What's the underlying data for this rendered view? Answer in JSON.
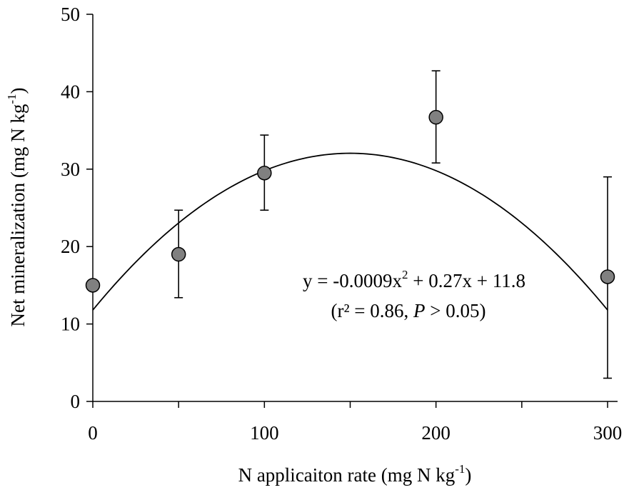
{
  "chart_data": {
    "type": "scatter",
    "xlabel": "N applicaiton  rate  (mg N kg",
    "xlabel_sup": "-1",
    "xlabel_end": ")",
    "ylabel": "Net mineralization  (mg N kg",
    "ylabel_sup": "-1",
    "ylabel_end": ")",
    "xlim": [
      0,
      310
    ],
    "ylim": [
      0,
      50
    ],
    "xticks_major": [
      0,
      100,
      200,
      300
    ],
    "xticks_minor": [
      50,
      150,
      250
    ],
    "yticks": [
      0,
      10,
      20,
      30,
      40,
      50
    ],
    "points": [
      {
        "x": 0,
        "y": 15.0,
        "err_low": null,
        "err_high": null
      },
      {
        "x": 50,
        "y": 19.0,
        "err_low": 13.4,
        "err_high": 24.7
      },
      {
        "x": 100,
        "y": 29.5,
        "err_low": 24.7,
        "err_high": 34.4
      },
      {
        "x": 200,
        "y": 36.7,
        "err_low": 30.8,
        "err_high": 42.7
      },
      {
        "x": 300,
        "y": 16.1,
        "err_low": 3.0,
        "err_high": 29.0
      }
    ],
    "fit": {
      "a": -0.0009,
      "b": 0.27,
      "c": 11.8,
      "x_range": [
        0,
        300
      ]
    },
    "equation_line1_pre": "y = -0.0009x",
    "equation_line1_sup": "2",
    "equation_line1_post": "  + 0.27x + 11.8",
    "equation_line2_pre": "(r² = 0.86, ",
    "equation_line2_italic": "P",
    "equation_line2_post": " > 0.05)",
    "marker_color": "#808080",
    "grid": false,
    "legend": "none"
  }
}
